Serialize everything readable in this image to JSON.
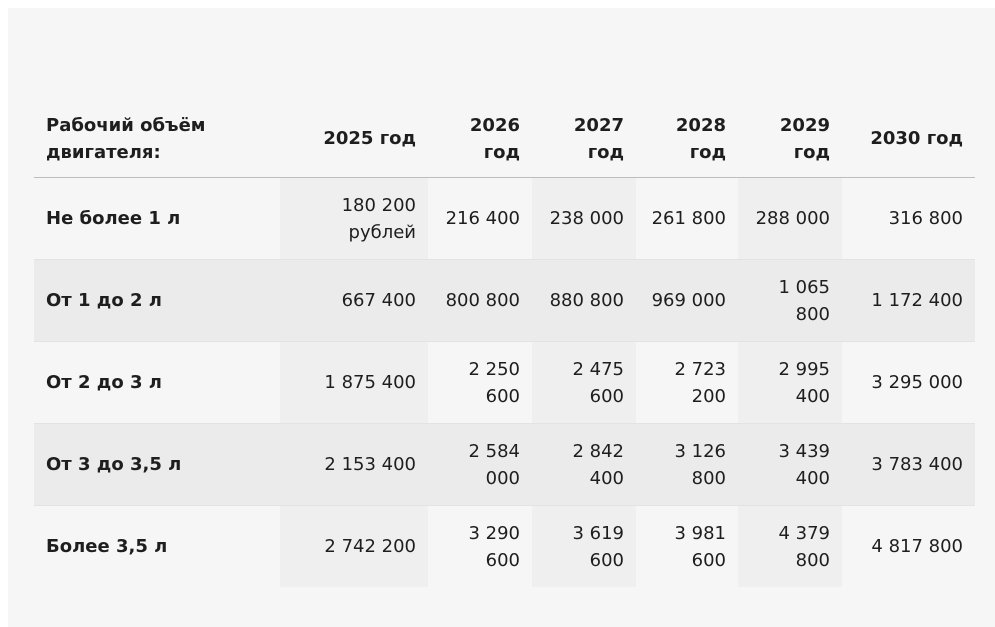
{
  "table": {
    "header": {
      "label": "Рабочий объём двигателя:",
      "years": [
        "2025 год",
        "2026 год",
        "2027 год",
        "2028 год",
        "2029 год",
        "2030 год"
      ]
    },
    "rows": [
      {
        "label": "Не более 1 л",
        "values": [
          "180 200 рублей",
          "216 400",
          "238 000",
          "261 800",
          "288 000",
          "316 800"
        ]
      },
      {
        "label": "От 1 до 2 л",
        "values": [
          "667 400",
          "800 800",
          "880 800",
          "969 000",
          "1 065 800",
          "1 172 400"
        ]
      },
      {
        "label": "От 2 до 3 л",
        "values": [
          "1 875 400",
          "2 250 600",
          "2 475 600",
          "2 723 200",
          "2 995 400",
          "3 295 000"
        ]
      },
      {
        "label": "От 3 до 3,5 л",
        "values": [
          "2 153 400",
          "2 584 000",
          "2 842 400",
          "3 126 800",
          "3 439 400",
          "3 783 400"
        ]
      },
      {
        "label": "Более 3,5 л",
        "values": [
          "2 742 200",
          "3 290 600",
          "3 619 600",
          "3 981 600",
          "4 379 800",
          "4 817 800"
        ]
      }
    ]
  }
}
